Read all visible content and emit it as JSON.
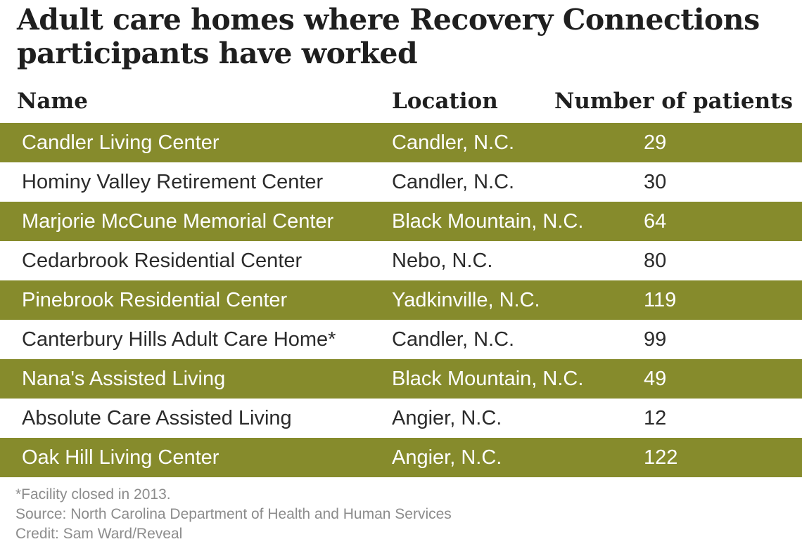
{
  "title": "Adult care homes where Recovery Connections participants have worked",
  "table": {
    "headers": {
      "name": "Name",
      "location": "Location",
      "patients": "Number of patients"
    },
    "rows": [
      {
        "name": "Candler Living Center",
        "location": "Candler, N.C.",
        "patients": "29"
      },
      {
        "name": "Hominy Valley Retirement Center",
        "location": "Candler, N.C.",
        "patients": "30"
      },
      {
        "name": "Marjorie McCune Memorial Center",
        "location": "Black Mountain, N.C.",
        "patients": "64"
      },
      {
        "name": "Cedarbrook Residential Center",
        "location": "Nebo, N.C.",
        "patients": "80"
      },
      {
        "name": "Pinebrook Residential Center",
        "location": "Yadkinville, N.C.",
        "patients": "119"
      },
      {
        "name": "Canterbury Hills Adult Care Home*",
        "location": "Candler, N.C.",
        "patients": "99"
      },
      {
        "name": "Nana's Assisted Living",
        "location": "Black Mountain, N.C.",
        "patients": "49"
      },
      {
        "name": "Absolute Care Assisted Living",
        "location": "Angier, N.C.",
        "patients": "12"
      },
      {
        "name": "Oak Hill Living Center",
        "location": "Angier, N.C.",
        "patients": "122"
      }
    ],
    "stripe_color": "#868b2c"
  },
  "footer": {
    "note": "*Facility closed in 2013.",
    "source": "Source: North Carolina Department of Health and Human Services",
    "credit": "Credit: Sam Ward/Reveal"
  }
}
